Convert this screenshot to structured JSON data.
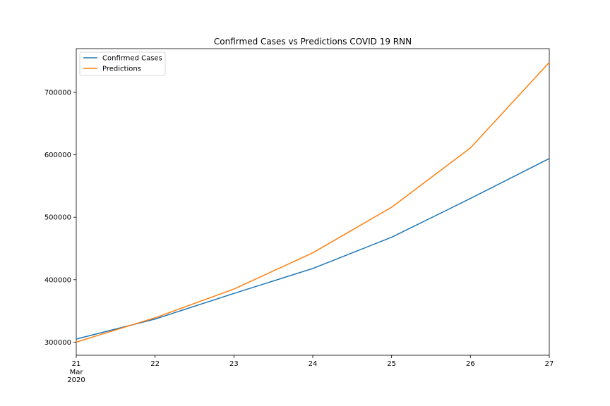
{
  "chart_data": {
    "type": "line",
    "title": "Confirmed Cases vs Predictions COVID 19 RNN",
    "xlabel": "",
    "ylabel": "",
    "x": [
      "2020-03-21",
      "2020-03-22",
      "2020-03-23",
      "2020-03-24",
      "2020-03-25",
      "2020-03-26",
      "2020-03-27"
    ],
    "x_tick_labels": [
      "21",
      "22",
      "23",
      "24",
      "25",
      "26",
      "27"
    ],
    "x_tick_sublabels": [
      "Mar",
      "2020"
    ],
    "ylim": [
      279000,
      770000
    ],
    "y_ticks": [
      300000,
      400000,
      500000,
      600000,
      700000
    ],
    "y_tick_labels": [
      "300000",
      "400000",
      "500000",
      "600000",
      "700000"
    ],
    "grid": false,
    "legend_position": "top-left",
    "series": [
      {
        "name": "Confirmed Cases",
        "color": "#1f77b4",
        "values": [
          305000,
          337000,
          378000,
          418000,
          468000,
          530000,
          594000
        ]
      },
      {
        "name": "Predictions",
        "color": "#ff7f0e",
        "values": [
          300000,
          339000,
          385000,
          443000,
          516000,
          611000,
          748000
        ]
      }
    ]
  }
}
